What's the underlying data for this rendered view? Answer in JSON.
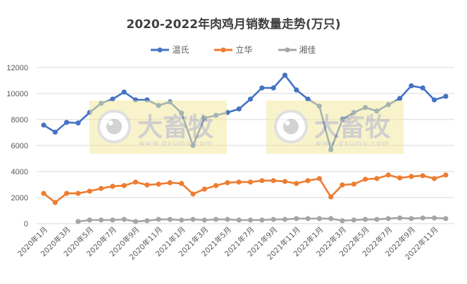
{
  "chart_data": {
    "type": "line",
    "title": "2020-2022年肉鸡月销数量走势(万只)",
    "xlabel": "",
    "ylabel": "",
    "ylim": [
      0,
      12000
    ],
    "yticks": [
      0,
      2000,
      4000,
      6000,
      8000,
      10000,
      12000
    ],
    "grid": true,
    "legend_position": "top",
    "x": [
      "2020年1月",
      "2020年2月",
      "2020年3月",
      "2020年4月",
      "2020年5月",
      "2020年6月",
      "2020年7月",
      "2020年8月",
      "2020年9月",
      "2020年10月",
      "2020年11月",
      "2020年12月",
      "2021年1月",
      "2021年2月",
      "2021年3月",
      "2021年4月",
      "2021年5月",
      "2021年6月",
      "2021年7月",
      "2021年8月",
      "2021年9月",
      "2021年10月",
      "2021年11月",
      "2021年12月",
      "2022年1月",
      "2022年2月",
      "2022年3月",
      "2022年4月",
      "2022年5月",
      "2022年6月",
      "2022年7月",
      "2022年8月",
      "2022年9月",
      "2022年10月",
      "2022年11月",
      "2022年12月"
    ],
    "xtick_labels": [
      "2020年1月",
      "2020年3月",
      "2020年5月",
      "2020年7月",
      "2020年9月",
      "2020年11月",
      "2021年1月",
      "2021年3月",
      "2021年5月",
      "2021年7月",
      "2021年9月",
      "2021年11月",
      "2022年1月",
      "2022年3月",
      "2022年5月",
      "2022年7月",
      "2022年9月",
      "2022年11月"
    ],
    "series": [
      {
        "name": "温氏",
        "color": "#4472C4",
        "values": [
          7570,
          7030,
          7780,
          7730,
          8540,
          9240,
          9570,
          10110,
          9510,
          9510,
          9080,
          9350,
          8490,
          6000,
          8110,
          8320,
          8540,
          8810,
          9570,
          10430,
          10430,
          11410,
          10270,
          9570,
          9030,
          5680,
          8000,
          8540,
          8920,
          8650,
          9140,
          9620,
          10590,
          10430,
          9510,
          9780
        ]
      },
      {
        "name": "立华",
        "color": "#ED7D31",
        "values": [
          2320,
          1620,
          2320,
          2320,
          2490,
          2700,
          2860,
          2920,
          3190,
          2970,
          3030,
          3140,
          3080,
          2270,
          2650,
          2920,
          3140,
          3190,
          3190,
          3300,
          3300,
          3240,
          3080,
          3300,
          3460,
          2050,
          2970,
          3030,
          3410,
          3460,
          3730,
          3510,
          3620,
          3680,
          3460,
          3730
        ]
      },
      {
        "name": "湘佳",
        "color": "#A5A5A5",
        "values": [
          null,
          null,
          null,
          160,
          270,
          270,
          270,
          320,
          160,
          220,
          320,
          320,
          270,
          320,
          270,
          320,
          320,
          270,
          270,
          270,
          320,
          320,
          380,
          380,
          380,
          380,
          220,
          270,
          320,
          320,
          380,
          430,
          380,
          430,
          430,
          380
        ]
      }
    ]
  },
  "watermark": {
    "brand": "大畜牧",
    "url": "www.dxumu.com"
  }
}
